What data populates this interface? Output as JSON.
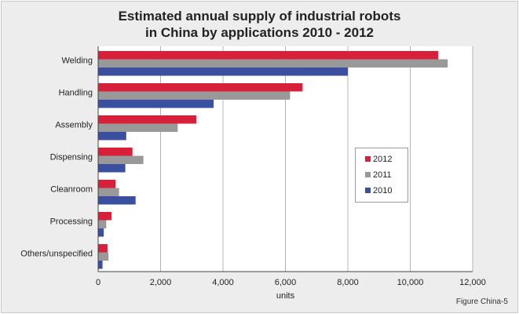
{
  "figure_caption": "Figure China-5",
  "chart_data": {
    "type": "bar",
    "orientation": "horizontal",
    "title": "Estimated annual supply of industrial robots in China by applications 2010 - 2012",
    "title_lines": [
      "Estimated annual supply of industrial robots",
      "in China by applications 2010 - 2012"
    ],
    "xlabel": "units",
    "ylabel": "",
    "xlim": [
      0,
      12000
    ],
    "xticks": [
      0,
      2000,
      4000,
      6000,
      8000,
      10000,
      12000
    ],
    "xtick_labels": [
      "0",
      "2,000",
      "4,000",
      "6,000",
      "8,000",
      "10,000",
      "12,000"
    ],
    "grid": "vertical",
    "legend_position": "right",
    "categories": [
      "Welding",
      "Handling",
      "Assembly",
      "Dispensing",
      "Cleanroom",
      "Processing",
      "Others/unspecified"
    ],
    "series": [
      {
        "name": "2012",
        "color": "#d9203a",
        "values": [
          10900,
          6550,
          3150,
          1100,
          560,
          430,
          300
        ]
      },
      {
        "name": "2011",
        "color": "#999999",
        "values": [
          11200,
          6150,
          2550,
          1450,
          670,
          260,
          330
        ]
      },
      {
        "name": "2010",
        "color": "#3a4fa0",
        "values": [
          8000,
          3700,
          900,
          870,
          1200,
          180,
          140
        ]
      }
    ]
  }
}
